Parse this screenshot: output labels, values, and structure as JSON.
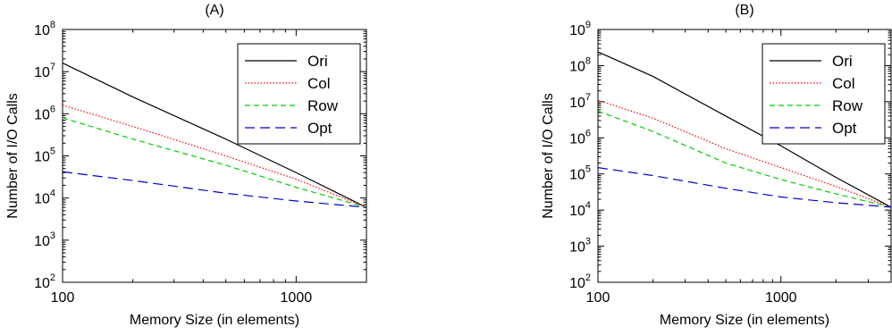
{
  "colors": {
    "Ori": "#000000",
    "Col": "#ff0000",
    "Row": "#00cc00",
    "Opt": "#0000cc"
  },
  "chart_data": [
    {
      "type": "line",
      "title": "(A)",
      "xlabel": "Memory Size (in elements)",
      "ylabel": "Number of I/O Calls",
      "xscale": "log",
      "yscale": "log",
      "xlim": [
        100,
        2000
      ],
      "ylim": [
        100,
        100000000
      ],
      "xticks": [
        {
          "value": 100,
          "label": "100"
        },
        {
          "value": 1000,
          "label": "1000"
        }
      ],
      "yticks": [
        {
          "value": 100,
          "base": "10",
          "exp": "2"
        },
        {
          "value": 1000,
          "base": "10",
          "exp": "3"
        },
        {
          "value": 10000,
          "base": "10",
          "exp": "4"
        },
        {
          "value": 100000,
          "base": "10",
          "exp": "5"
        },
        {
          "value": 1000000,
          "base": "10",
          "exp": "6"
        },
        {
          "value": 10000000,
          "base": "10",
          "exp": "7"
        },
        {
          "value": 100000000,
          "base": "10",
          "exp": "8"
        }
      ],
      "grid": false,
      "legend_position": "top-right",
      "series": [
        {
          "name": "Ori",
          "style": "solid",
          "x": [
            100,
            200,
            500,
            1000,
            2000
          ],
          "y": [
            16000000,
            2500000,
            250000,
            40000,
            6000
          ]
        },
        {
          "name": "Col",
          "style": "dotted",
          "x": [
            100,
            200,
            500,
            1000,
            2000
          ],
          "y": [
            1600000,
            500000,
            100000,
            28000,
            6000
          ]
        },
        {
          "name": "Row",
          "style": "dashed",
          "x": [
            100,
            200,
            500,
            1000,
            2000
          ],
          "y": [
            800000,
            250000,
            60000,
            18000,
            6000
          ]
        },
        {
          "name": "Opt",
          "style": "longdash",
          "x": [
            100,
            200,
            500,
            1000,
            2000
          ],
          "y": [
            42000,
            26000,
            13000,
            8500,
            6000
          ]
        }
      ]
    },
    {
      "type": "line",
      "title": "(B)",
      "xlabel": "Memory Size  (in elements)",
      "ylabel": "Number of I/O Calls",
      "xscale": "log",
      "yscale": "log",
      "xlim": [
        100,
        4000
      ],
      "ylim": [
        100,
        1000000000
      ],
      "xticks": [
        {
          "value": 100,
          "label": "100"
        },
        {
          "value": 1000,
          "label": "1000"
        }
      ],
      "yticks": [
        {
          "value": 100,
          "base": "10",
          "exp": "2"
        },
        {
          "value": 1000,
          "base": "10",
          "exp": "3"
        },
        {
          "value": 10000,
          "base": "10",
          "exp": "4"
        },
        {
          "value": 100000,
          "base": "10",
          "exp": "5"
        },
        {
          "value": 1000000,
          "base": "10",
          "exp": "6"
        },
        {
          "value": 10000000,
          "base": "10",
          "exp": "7"
        },
        {
          "value": 100000000,
          "base": "10",
          "exp": "8"
        },
        {
          "value": 1000000000,
          "base": "10",
          "exp": "9"
        }
      ],
      "grid": false,
      "legend_position": "top-right",
      "series": [
        {
          "name": "Ori",
          "style": "solid",
          "x": [
            100,
            200,
            500,
            1000,
            2000,
            4000
          ],
          "y": [
            240000000,
            50000000,
            4000000,
            600000,
            80000,
            12000
          ]
        },
        {
          "name": "Col",
          "style": "dotted",
          "x": [
            100,
            200,
            500,
            1000,
            2000,
            4000
          ],
          "y": [
            11000000,
            3500000,
            500000,
            150000,
            45000,
            12000
          ]
        },
        {
          "name": "Row",
          "style": "dashed",
          "x": [
            100,
            200,
            500,
            1000,
            2000,
            4000
          ],
          "y": [
            5500000,
            1500000,
            200000,
            70000,
            28000,
            12000
          ]
        },
        {
          "name": "Opt",
          "style": "longdash",
          "x": [
            100,
            200,
            500,
            1000,
            2000,
            4000
          ],
          "y": [
            150000,
            90000,
            40000,
            23000,
            16000,
            12000
          ]
        }
      ]
    }
  ]
}
